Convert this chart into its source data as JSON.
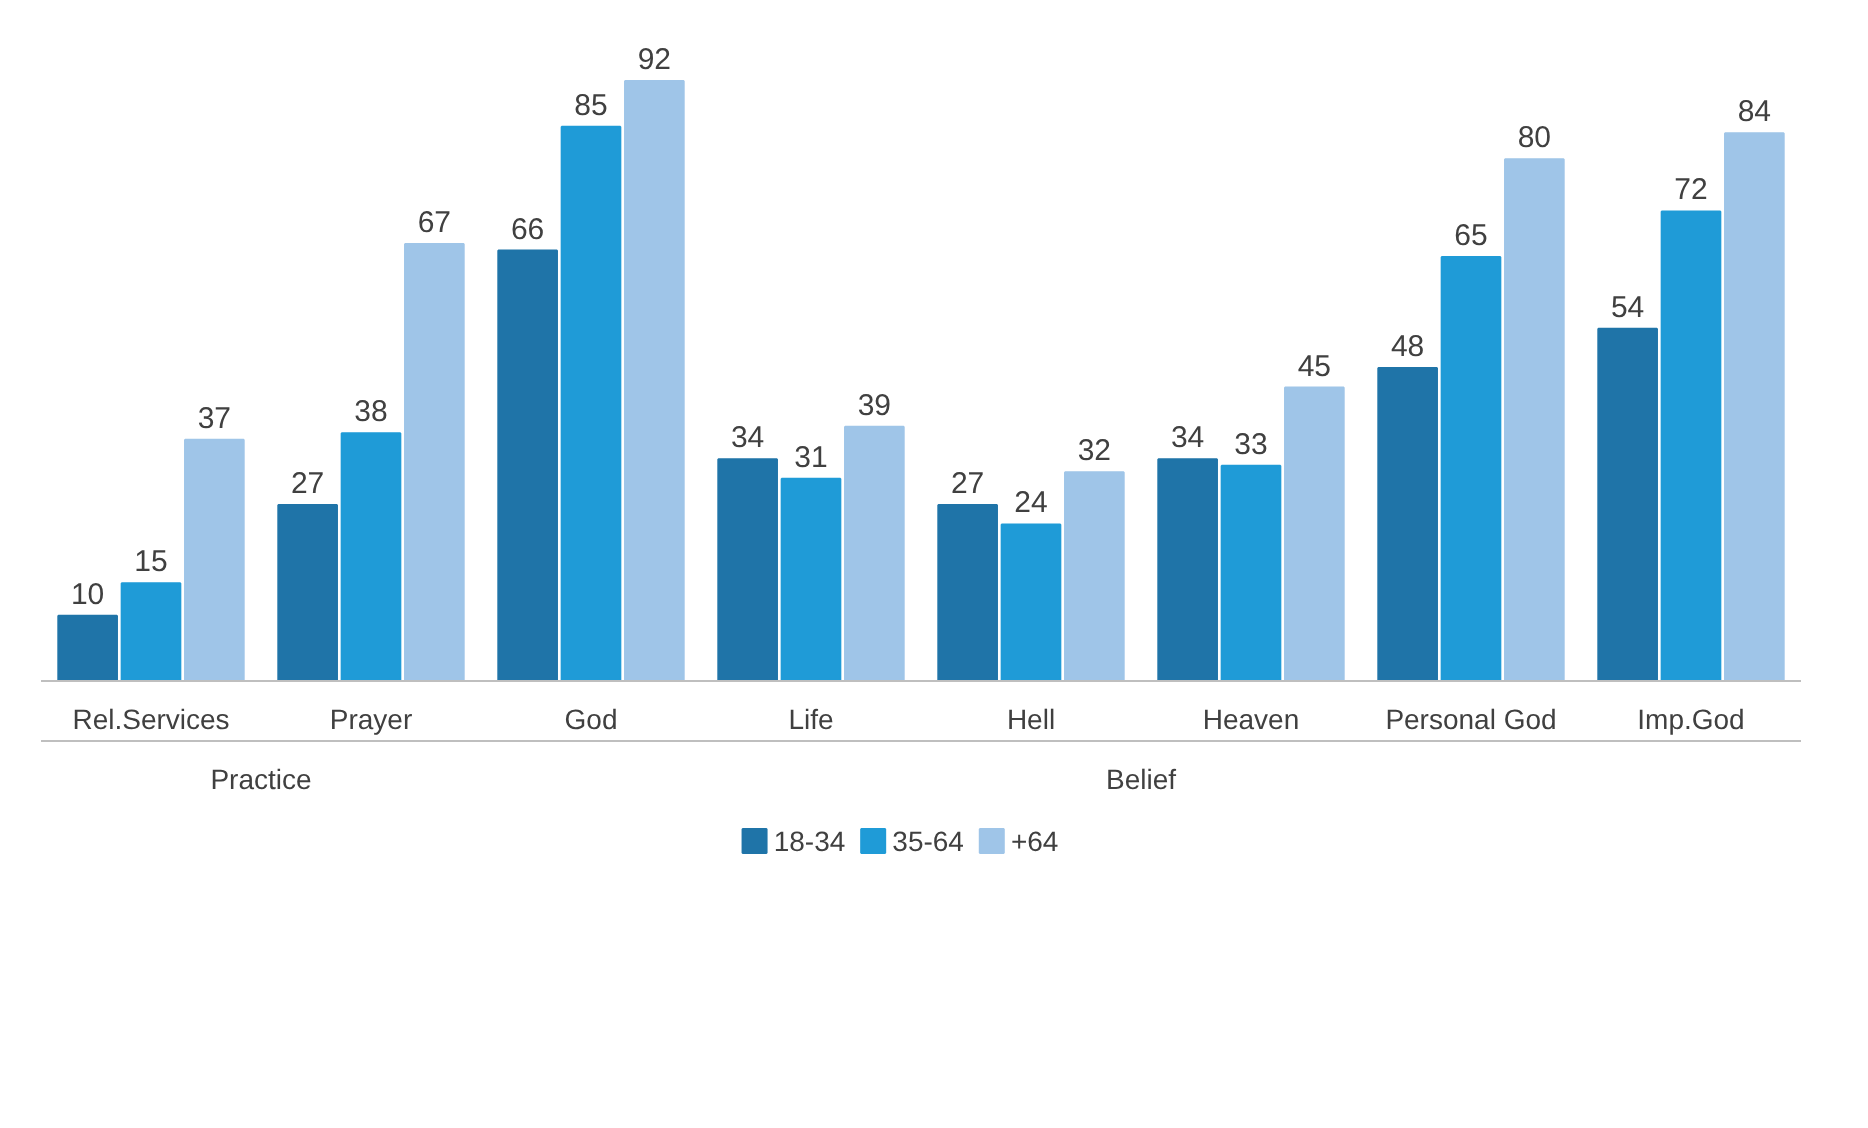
{
  "chart_data": {
    "type": "bar",
    "categories": [
      "Rel.Services",
      "Prayer",
      "God",
      "Life",
      "Hell",
      "Heaven",
      "Personal God",
      "Imp.God"
    ],
    "series": [
      {
        "name": "18-34",
        "color": "#1f74a8",
        "values": [
          10,
          27,
          66,
          34,
          27,
          34,
          48,
          54
        ]
      },
      {
        "name": "35-64",
        "color": "#1f9bd7",
        "values": [
          15,
          38,
          85,
          31,
          24,
          33,
          65,
          72
        ]
      },
      {
        "name": "+64",
        "color": "#9fc5e8",
        "values": [
          37,
          67,
          92,
          39,
          32,
          45,
          80,
          84
        ]
      }
    ],
    "annotations": [
      "Practice",
      "Belief"
    ],
    "data_labels": true,
    "grid": false,
    "legend": "bottom"
  }
}
